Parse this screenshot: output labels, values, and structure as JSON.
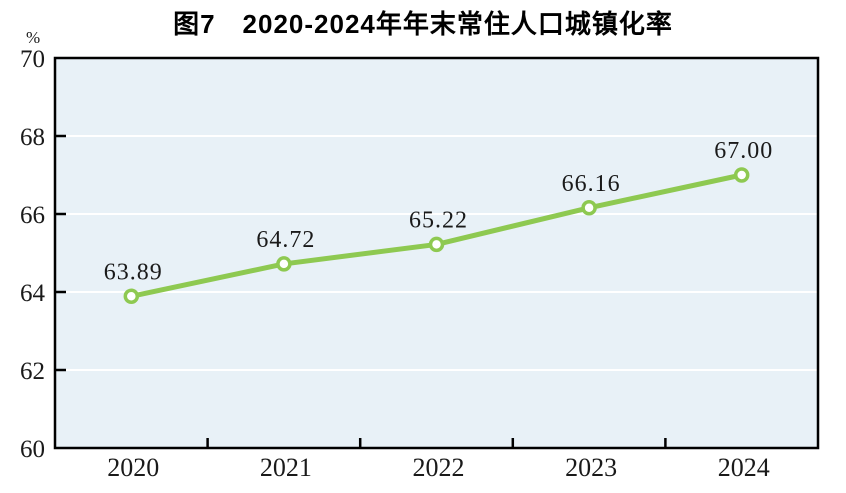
{
  "chart_data": {
    "type": "line",
    "title": "图7　2020-2024年年末常住人口城镇化率",
    "unit_label": "%",
    "categories": [
      "2020",
      "2021",
      "2022",
      "2023",
      "2024"
    ],
    "values": [
      63.89,
      64.72,
      65.22,
      66.16,
      67.0
    ],
    "point_labels": [
      "63.89",
      "64.72",
      "65.22",
      "66.16",
      "67.00"
    ],
    "ylim": [
      60,
      70
    ],
    "yticks": [
      60,
      62,
      64,
      66,
      68,
      70
    ],
    "grid": true,
    "legend": "none",
    "xlabel": "",
    "ylabel": "%",
    "colors": {
      "line": "#8ec951",
      "marker_fill": "#ffffff",
      "plot_bg": "#e8f1f7",
      "gridline": "#ffffff",
      "axis": "#000000",
      "text": "#1a1a1a",
      "title": "#000000"
    }
  }
}
